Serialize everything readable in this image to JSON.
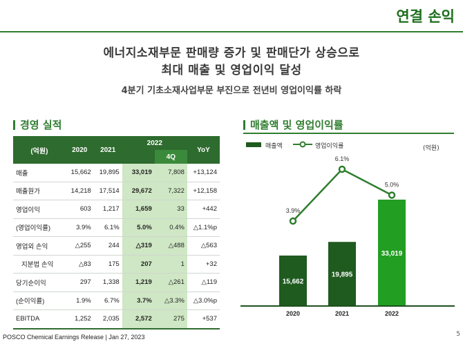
{
  "header": {
    "title": "연결 손익"
  },
  "headline": {
    "line1": "에너지소재부문 판매량 증가 및 판매단가 상승으로",
    "line2": "최대 매출 및 영업이익 달성",
    "subline": "4분기 기초소재사업부문 부진으로 전년비 영업이익률 하락"
  },
  "table_section": {
    "title": "경영 실적",
    "columns": [
      "(억원)",
      "2020",
      "2021",
      "2022",
      "4Q",
      "YoY"
    ],
    "rows": [
      {
        "label": "매출",
        "v2020": "15,662",
        "v2021": "19,895",
        "v2022": "33,019",
        "q4": "7,808",
        "yoy": "+13,124"
      },
      {
        "label": "매출원가",
        "v2020": "14,218",
        "v2021": "17,514",
        "v2022": "29,672",
        "q4": "7,322",
        "yoy": "+12,158"
      },
      {
        "label": "영업이익",
        "v2020": "603",
        "v2021": "1,217",
        "v2022": "1,659",
        "q4": "33",
        "yoy": "+442"
      },
      {
        "label": "(영업이익률)",
        "v2020": "3.9%",
        "v2021": "6.1%",
        "v2022": "5.0%",
        "q4": "0.4%",
        "yoy": "△1.1%p"
      },
      {
        "label": "영업외 손익",
        "v2020": "△255",
        "v2021": "244",
        "v2022": "△319",
        "q4": "△488",
        "yoy": "△563"
      },
      {
        "label": "지분법 손익",
        "v2020": "△83",
        "v2021": "175",
        "v2022": "207",
        "q4": "1",
        "yoy": "+32"
      },
      {
        "label": "당기순이익",
        "v2020": "297",
        "v2021": "1,338",
        "v2022": "1,219",
        "q4": "△261",
        "yoy": "△119"
      },
      {
        "label": "(순이익률)",
        "v2020": "1.9%",
        "v2021": "6.7%",
        "v2022": "3.7%",
        "q4": "△3.3%",
        "yoy": "△3.0%p"
      },
      {
        "label": "EBITDA",
        "v2020": "1,252",
        "v2021": "2,035",
        "v2022": "2,572",
        "q4": "275",
        "yoy": "+537"
      }
    ]
  },
  "chart_section": {
    "title": "매출액 및 영업이익률",
    "legend_bar": "매출액",
    "legend_line": "영업이익률",
    "unit": "(억원)"
  },
  "chart_data": {
    "type": "bar",
    "categories": [
      "2020",
      "2021",
      "2022"
    ],
    "series": [
      {
        "name": "매출액",
        "type": "bar",
        "values": [
          15662,
          19895,
          33019
        ],
        "labels": [
          "15,662",
          "19,895",
          "33,019"
        ]
      },
      {
        "name": "영업이익률",
        "type": "line",
        "values": [
          3.9,
          6.1,
          5.0
        ],
        "labels": [
          "3.9%",
          "6.1%",
          "5.0%"
        ]
      }
    ],
    "colors": {
      "bar_dark": "#1f5a1f",
      "bar_light": "#229e22",
      "line": "#2e7d2e"
    }
  },
  "colors": {
    "accent": "#2f7d2f",
    "header_bg": "#2e6b2e",
    "highlight": "#cfe7c4"
  },
  "footer": {
    "text": "POSCO Chemical Earnings Release | Jan 27, 2023",
    "page": "5"
  }
}
